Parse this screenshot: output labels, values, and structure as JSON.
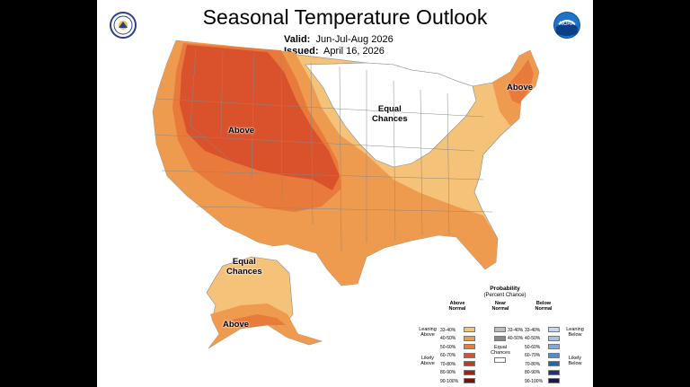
{
  "header": {
    "title": "Seasonal Temperature Outlook",
    "valid_label": "Valid:",
    "valid_value": "Jun-Jul-Aug 2026",
    "issued_label": "Issued:",
    "issued_value": "April 16, 2026"
  },
  "map_labels": {
    "above_west": "Above",
    "above_northeast": "Above",
    "equal_chances_midwest": [
      "Equal",
      "Chances"
    ],
    "equal_chances_alaska": [
      "Equal",
      "Chances"
    ],
    "above_alaska": "Above"
  },
  "legend": {
    "title": "Probability",
    "subtitle": "(Percent Chance)",
    "above_header": [
      "Above",
      "Normal"
    ],
    "near_header": [
      "Near",
      "Normal"
    ],
    "below_header": [
      "Below",
      "Normal"
    ],
    "above_items": [
      {
        "label": "33-40%",
        "color": "#f5c27a"
      },
      {
        "label": "40-50%",
        "color": "#ee9b50"
      },
      {
        "label": "50-60%",
        "color": "#e87a3c"
      },
      {
        "label": "60-70%",
        "color": "#d9522c"
      },
      {
        "label": "70-80%",
        "color": "#c23a1e"
      },
      {
        "label": "80-90%",
        "color": "#9c2412"
      },
      {
        "label": "90-100%",
        "color": "#6e1408"
      }
    ],
    "near_items": [
      {
        "label": "33-40%",
        "color": "#bdbdbd"
      },
      {
        "label": "40-50%",
        "color": "#8a8a8a"
      }
    ],
    "equal_chances": [
      "Equal",
      "Chances"
    ],
    "below_items": [
      {
        "label": "33-40%",
        "color": "#c9d7ee"
      },
      {
        "label": "40-50%",
        "color": "#a7c1e4"
      },
      {
        "label": "50-60%",
        "color": "#7fa9dc"
      },
      {
        "label": "60-70%",
        "color": "#4f8ed0"
      },
      {
        "label": "70-80%",
        "color": "#2464b2"
      },
      {
        "label": "80-90%",
        "color": "#23307f"
      },
      {
        "label": "90-100%",
        "color": "#1c1654"
      }
    ],
    "leaning_above": [
      "Leaning",
      "Above"
    ],
    "likely_above": [
      "Likely",
      "Above"
    ],
    "leaning_below": [
      "Leaning",
      "Below"
    ],
    "likely_below": [
      "Likely",
      "Below"
    ]
  },
  "colors": {
    "above_33_40": "#f5c27a",
    "above_40_50": "#ee9b50",
    "above_50_60": "#e87a3c",
    "above_60_70": "#d9522c",
    "frame": "#000000",
    "map_background": "#ffffff"
  },
  "icons": [
    "commerce-seal-icon",
    "noaa-logo-icon"
  ]
}
